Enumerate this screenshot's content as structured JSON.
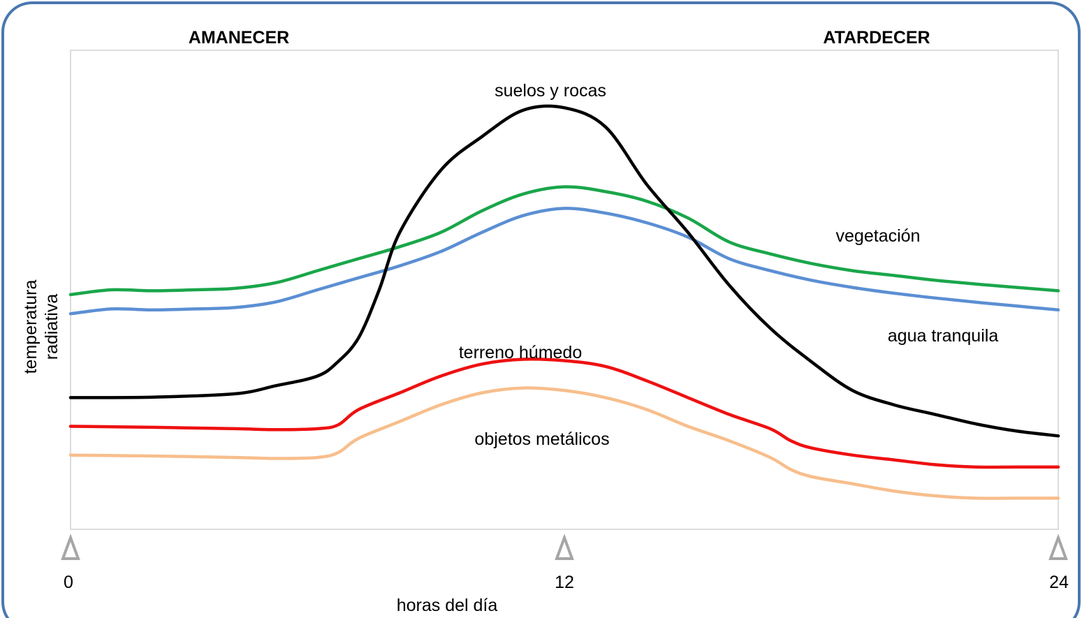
{
  "chart_data": {
    "type": "line",
    "title": "",
    "xlabel": "horas del día",
    "ylabel": "temperatura radiativa",
    "ylabel_lines": [
      "temperatura",
      "radiativa"
    ],
    "xlim": [
      0,
      24
    ],
    "ylim": [
      0,
      100
    ],
    "x_ticks": [
      {
        "value": 0,
        "label": "0"
      },
      {
        "value": 12,
        "label": "12"
      },
      {
        "value": 24,
        "label": "24"
      }
    ],
    "top_labels": {
      "left": "AMANECER",
      "right": "ATARDECER"
    },
    "grid": false,
    "legend": "none",
    "series": [
      {
        "name": "suelos y rocas",
        "color": "#000000",
        "x": [
          0,
          2,
          4,
          5,
          6,
          6.5,
          7,
          7.5,
          8,
          9,
          10,
          11,
          12,
          13,
          14,
          15,
          16,
          17,
          18,
          19,
          20,
          21,
          22,
          23,
          24
        ],
        "y": [
          27.5,
          27.6,
          28.3,
          30,
          32,
          35,
          40,
          50,
          62,
          75,
          82,
          87.5,
          88,
          84,
          72,
          62,
          51,
          42,
          35,
          29,
          26,
          24,
          22,
          20.5,
          19.5
        ]
      },
      {
        "name": "vegetación",
        "color": "#1aa64a",
        "x": [
          0,
          1,
          2,
          3,
          4,
          5,
          6,
          7,
          8,
          9,
          10,
          11,
          12,
          13,
          14,
          15,
          16,
          17,
          18,
          19,
          20,
          21,
          22,
          23,
          24
        ],
        "y": [
          49,
          50,
          49.8,
          50,
          50.3,
          51.5,
          54,
          56.5,
          59,
          62,
          66.5,
          70,
          71.5,
          70.5,
          68.5,
          65,
          60,
          57.5,
          55.5,
          54,
          53,
          52,
          51.2,
          50.5,
          49.8
        ]
      },
      {
        "name": "agua tranquila",
        "color": "#5b8fd3",
        "x": [
          0,
          1,
          2,
          3,
          4,
          5,
          6,
          7,
          8,
          9,
          10,
          11,
          12,
          13,
          14,
          15,
          16,
          17,
          18,
          19,
          20,
          21,
          22,
          23,
          24
        ],
        "y": [
          45,
          46,
          45.8,
          46,
          46.3,
          47.5,
          50,
          52.5,
          55,
          58,
          62,
          65.5,
          67,
          66,
          64,
          61,
          56.5,
          54,
          52,
          50.5,
          49.3,
          48.3,
          47.4,
          46.6,
          45.8
        ]
      },
      {
        "name": "terreno húmedo",
        "color": "#ee1111",
        "x": [
          0,
          2,
          4,
          5,
          6,
          6.5,
          7,
          8,
          9,
          10,
          11,
          12,
          13,
          14,
          15,
          16,
          17,
          17.5,
          18,
          19,
          20,
          21,
          22,
          23,
          24
        ],
        "y": [
          21.5,
          21.3,
          21,
          20.8,
          21,
          21.8,
          25,
          28.5,
          32,
          34.5,
          35.5,
          35.2,
          34,
          31,
          27.5,
          24,
          21,
          18.5,
          17,
          15.5,
          14.5,
          13.5,
          13,
          13,
          13
        ]
      },
      {
        "name": "objetos metálicos",
        "color": "#f7be8c",
        "x": [
          0,
          2,
          4,
          5,
          6,
          6.5,
          7,
          8,
          9,
          10,
          11,
          12,
          13,
          14,
          15,
          16,
          17,
          17.5,
          18,
          19,
          20,
          21,
          22,
          23,
          24
        ],
        "y": [
          15.5,
          15.3,
          15,
          14.8,
          15,
          16,
          19,
          22.5,
          26,
          28.5,
          29.5,
          29,
          27.5,
          25,
          21.5,
          18.5,
          15,
          12.5,
          11,
          9.5,
          8,
          7,
          6.5,
          6.5,
          6.5
        ]
      }
    ]
  }
}
